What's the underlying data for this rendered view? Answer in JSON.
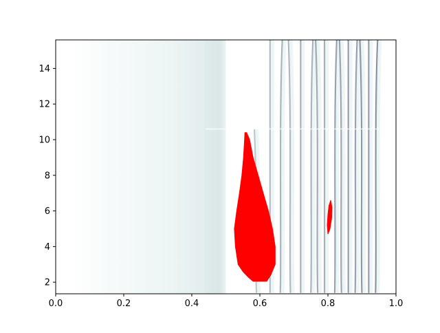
{
  "chart_data": {
    "type": "heatmap",
    "title": "",
    "xlabel": "",
    "ylabel": "",
    "xlim": [
      0,
      1
    ],
    "ylim": [
      1.35,
      15.6
    ],
    "x_ticks": [
      0.0,
      0.2,
      0.4,
      0.6,
      0.8,
      1.0
    ],
    "x_tick_labels": [
      "0.0",
      "0.2",
      "0.4",
      "0.6",
      "0.8",
      "1.0"
    ],
    "y_ticks": [
      2,
      4,
      6,
      8,
      10,
      12,
      14
    ],
    "y_tick_labels": [
      "2",
      "4",
      "6",
      "8",
      "10",
      "12",
      "14"
    ],
    "grid": false,
    "colormap": {
      "low": "#ffffff",
      "mid": "#cfe2e2",
      "high": "#4a4a6a"
    },
    "background_field": {
      "description_free_note": "",
      "band_edge_y": 10.6,
      "x_extent": [
        0.05,
        0.95
      ]
    },
    "streaks": [
      {
        "x": 0.59,
        "y_range": [
          1.4,
          10.6
        ],
        "level": 0.35
      },
      {
        "x": 0.63,
        "y_range": [
          1.4,
          15.6
        ],
        "level": 0.45
      },
      {
        "x": 0.66,
        "y_range": [
          1.4,
          15.6
        ],
        "level": 0.55
      },
      {
        "x": 0.69,
        "y_range": [
          1.4,
          15.6
        ],
        "level": 0.5
      },
      {
        "x": 0.72,
        "y_range": [
          1.4,
          15.6
        ],
        "level": 0.6
      },
      {
        "x": 0.75,
        "y_range": [
          1.4,
          15.6
        ],
        "level": 0.55
      },
      {
        "x": 0.77,
        "y_range": [
          1.4,
          15.6
        ],
        "level": 0.65
      },
      {
        "x": 0.79,
        "y_range": [
          1.4,
          15.6
        ],
        "level": 0.6
      },
      {
        "x": 0.82,
        "y_range": [
          1.4,
          15.6
        ],
        "level": 0.75
      },
      {
        "x": 0.84,
        "y_range": [
          1.4,
          15.6
        ],
        "level": 0.7
      },
      {
        "x": 0.86,
        "y_range": [
          1.4,
          15.6
        ],
        "level": 0.8
      },
      {
        "x": 0.88,
        "y_range": [
          1.4,
          15.6
        ],
        "level": 0.75
      },
      {
        "x": 0.9,
        "y_range": [
          1.4,
          15.6
        ],
        "level": 0.85
      },
      {
        "x": 0.92,
        "y_range": [
          1.4,
          15.6
        ],
        "level": 0.8
      },
      {
        "x": 0.94,
        "y_range": [
          1.4,
          15.6
        ],
        "level": 0.9
      }
    ],
    "regions": [
      {
        "name_free": "",
        "color": "#ff0000",
        "polygon": [
          [
            0.561,
            10.4
          ],
          [
            0.57,
            10.0
          ],
          [
            0.58,
            9.0
          ],
          [
            0.595,
            8.0
          ],
          [
            0.61,
            7.0
          ],
          [
            0.625,
            6.0
          ],
          [
            0.637,
            5.0
          ],
          [
            0.645,
            4.0
          ],
          [
            0.645,
            3.0
          ],
          [
            0.632,
            2.4
          ],
          [
            0.62,
            2.05
          ],
          [
            0.58,
            2.05
          ],
          [
            0.565,
            2.3
          ],
          [
            0.55,
            2.6
          ],
          [
            0.536,
            3.0
          ],
          [
            0.528,
            4.0
          ],
          [
            0.525,
            5.0
          ],
          [
            0.532,
            6.0
          ],
          [
            0.54,
            7.0
          ],
          [
            0.547,
            8.0
          ],
          [
            0.552,
            9.0
          ],
          [
            0.555,
            10.0
          ],
          [
            0.556,
            10.4
          ]
        ]
      },
      {
        "name_free": "",
        "color": "#ff0000",
        "polygon": [
          [
            0.808,
            6.6
          ],
          [
            0.812,
            6.2
          ],
          [
            0.811,
            5.6
          ],
          [
            0.806,
            5.0
          ],
          [
            0.8,
            4.7
          ],
          [
            0.798,
            5.2
          ],
          [
            0.8,
            5.8
          ],
          [
            0.803,
            6.3
          ]
        ]
      }
    ]
  }
}
